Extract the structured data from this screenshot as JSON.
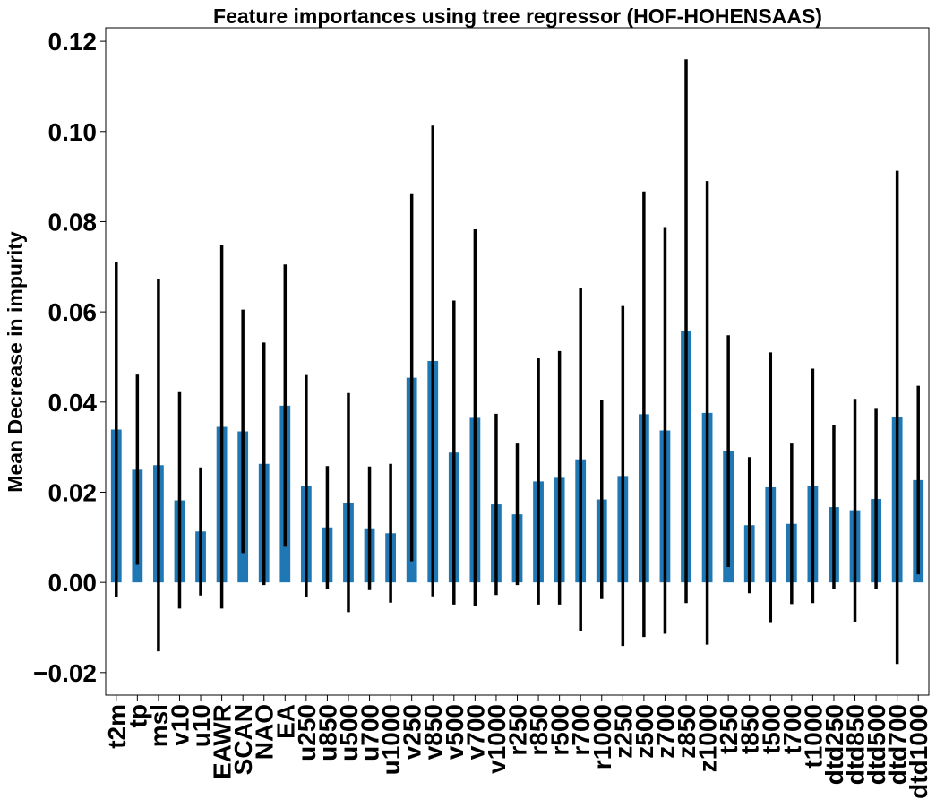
{
  "chart_data": {
    "type": "bar",
    "title": "Feature importances using tree regressor (HOF-HOHENSAAS)",
    "ylabel": "Mean Decrease in impurity",
    "xlabel": "",
    "ylim": [
      -0.025,
      0.123
    ],
    "yticks": [
      "−0.02",
      "0.00",
      "0.02",
      "0.04",
      "0.06",
      "0.08",
      "0.10",
      "0.12"
    ],
    "ytick_values": [
      -0.02,
      0.0,
      0.02,
      0.04,
      0.06,
      0.08,
      0.1,
      0.12
    ],
    "bar_color": "#1f77b4",
    "error_color": "#000000",
    "grid": false,
    "categories": [
      "t2m",
      "tp",
      "msl",
      "v10",
      "u10",
      "EAWR",
      "SCAN",
      "NAO",
      "EA",
      "u250",
      "u850",
      "u500",
      "u700",
      "u1000",
      "v250",
      "v850",
      "v500",
      "v700",
      "v1000",
      "r250",
      "r850",
      "r500",
      "r700",
      "r1000",
      "z250",
      "z500",
      "z700",
      "z850",
      "z1000",
      "t250",
      "t850",
      "t500",
      "t700",
      "t1000",
      "dtd250",
      "dtd850",
      "dtd500",
      "dtd700",
      "dtd1000"
    ],
    "values": [
      0.0339,
      0.025,
      0.026,
      0.0182,
      0.0113,
      0.0345,
      0.0335,
      0.0263,
      0.0392,
      0.0214,
      0.0122,
      0.0177,
      0.012,
      0.0109,
      0.0454,
      0.0491,
      0.0288,
      0.0365,
      0.0173,
      0.0151,
      0.0224,
      0.0232,
      0.0273,
      0.0184,
      0.0236,
      0.0373,
      0.0337,
      0.0557,
      0.0376,
      0.0291,
      0.0127,
      0.0211,
      0.013,
      0.0214,
      0.0167,
      0.016,
      0.0185,
      0.0366,
      0.0227
    ],
    "errors": [
      0.0371,
      0.0211,
      0.0413,
      0.024,
      0.0142,
      0.0403,
      0.027,
      0.0269,
      0.0313,
      0.0246,
      0.0136,
      0.0243,
      0.0137,
      0.0154,
      0.0407,
      0.0522,
      0.0337,
      0.0418,
      0.0201,
      0.0157,
      0.0273,
      0.0281,
      0.038,
      0.0221,
      0.0377,
      0.0494,
      0.0451,
      0.0603,
      0.0514,
      0.0257,
      0.0151,
      0.0299,
      0.0178,
      0.026,
      0.0181,
      0.0247,
      0.02,
      0.0547,
      0.0209
    ]
  }
}
